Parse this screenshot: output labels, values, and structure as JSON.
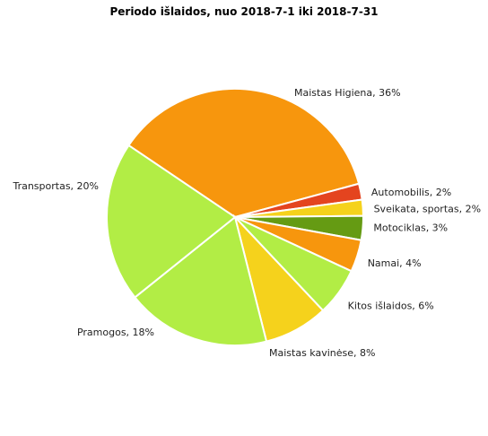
{
  "chart_data": {
    "type": "pie",
    "title": "Periodo išlaidos, nuo 2018-7-1 iki 2018-7-31",
    "slices": [
      {
        "label": "Maistas  Higiena, 36%",
        "value": 36,
        "color": "#f7960d"
      },
      {
        "label": "Automobilis, 2%",
        "value": 2,
        "color": "#e4441f"
      },
      {
        "label": "Sveikata, sportas, 2%",
        "value": 2,
        "color": "#f5d21c"
      },
      {
        "label": "Motociklas, 3%",
        "value": 3,
        "color": "#659b13"
      },
      {
        "label": "Namai, 4%",
        "value": 4,
        "color": "#f7960d"
      },
      {
        "label": "Kitos išlaidos, 6%",
        "value": 6,
        "color": "#b2ed45"
      },
      {
        "label": "Maistas kavinėse, 8%",
        "value": 8,
        "color": "#f5d21c"
      },
      {
        "label": "Pramogos, 18%",
        "value": 18,
        "color": "#b2ed45"
      },
      {
        "label": "Transportas, 20%",
        "value": 20,
        "color": "#b2ed45"
      }
    ]
  }
}
